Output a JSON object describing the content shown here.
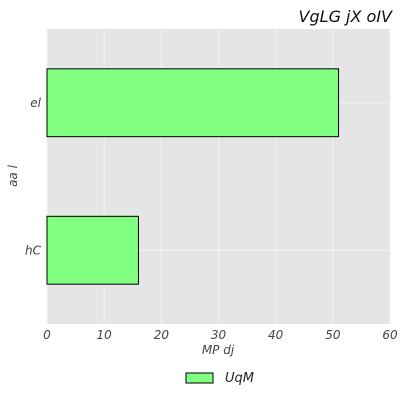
{
  "chart_data": {
    "type": "bar",
    "orientation": "horizontal",
    "title": "VgLG jX  oIV",
    "xlabel": "MP dj",
    "ylabel": "aa l",
    "categories": [
      "hC",
      "el"
    ],
    "series": [
      {
        "name": "UqM",
        "values": [
          16,
          51
        ],
        "color": "#80ff80"
      }
    ],
    "xlim": [
      0,
      60
    ],
    "xticks": [
      "0",
      "10",
      "20",
      "30",
      "40",
      "50",
      "60"
    ],
    "grid": true,
    "legend_position": "bottom-center"
  },
  "colors": {
    "plot_background": "#e5e5e5",
    "grid": "#f3f3f3",
    "bar_fill": "#80ff80",
    "bar_edge": "#000000"
  }
}
